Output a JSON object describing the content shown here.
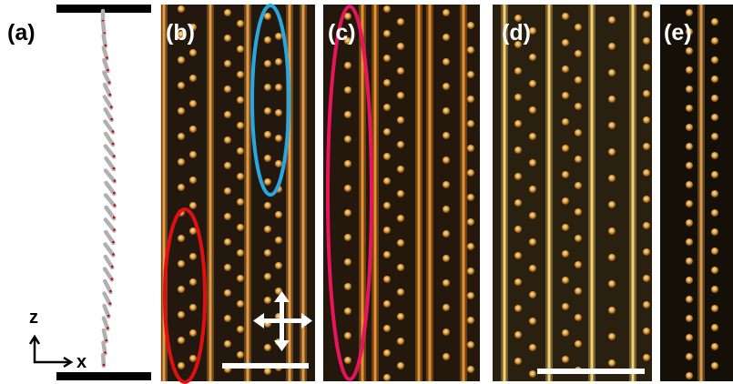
{
  "panels": [
    {
      "label": "(a)"
    },
    {
      "label": "(b)"
    },
    {
      "label": "(c)"
    },
    {
      "label": "(d)"
    },
    {
      "label": "(e)"
    }
  ],
  "axes": {
    "vertical": "z",
    "horizontal": "x"
  }
}
